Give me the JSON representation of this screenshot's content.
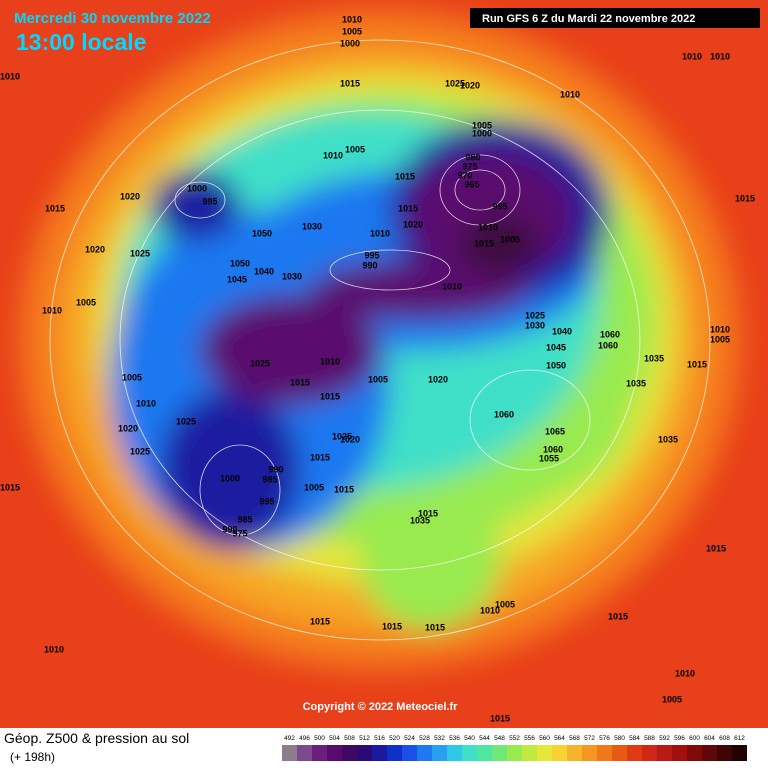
{
  "header": {
    "date": "Mercredi 30 novembre 2022",
    "time": "13:00 locale",
    "run": "Run GFS 6 Z du Mardi 22 novembre 2022"
  },
  "copyright": "Copyright © 2022 Meteociel.fr",
  "legend": {
    "title": "Géop. Z500 & pression au sol",
    "lead": "(+ 198h)",
    "scale": [
      492,
      496,
      500,
      504,
      508,
      512,
      516,
      520,
      524,
      528,
      532,
      536,
      540,
      544,
      548,
      552,
      556,
      560,
      564,
      568,
      572,
      576,
      580,
      584,
      588,
      592,
      596,
      600,
      604,
      608,
      612
    ],
    "colors": [
      "#8c7d8c",
      "#7a4a8a",
      "#6a1f7a",
      "#5a0a6e",
      "#3c0a60",
      "#2a0a78",
      "#1a1aa0",
      "#1030c8",
      "#1a50e6",
      "#1e78f0",
      "#28a0f0",
      "#30c8e8",
      "#40e0c8",
      "#50e6a0",
      "#70e878",
      "#98ea50",
      "#c0ea40",
      "#e6e63c",
      "#f6d232",
      "#f6b428",
      "#f69620",
      "#f07818",
      "#e85a14",
      "#e03c14",
      "#d02814",
      "#b81a14",
      "#a01010",
      "#800a0a",
      "#600808",
      "#400404",
      "#200202"
    ]
  },
  "isobar_labels": [
    "1010",
    "1010",
    "1005",
    "1000",
    "1015",
    "1025",
    "1020",
    "1010",
    "1010",
    "1005",
    "1000",
    "1005",
    "1010",
    "1015",
    "980",
    "975",
    "970",
    "965",
    "995",
    "1005",
    "1010",
    "1015",
    "1000",
    "995",
    "1020",
    "1015",
    "1020",
    "1025",
    "1050",
    "1030",
    "1020",
    "1015",
    "1010",
    "995",
    "990",
    "1010",
    "1050",
    "1045",
    "1040",
    "1030",
    "1005",
    "1010",
    "1025",
    "1015",
    "1010",
    "1005",
    "1020",
    "1015",
    "1025",
    "1030",
    "1045",
    "1050",
    "1040",
    "1060",
    "1060",
    "1035",
    "1035",
    "1015",
    "1010",
    "1005",
    "1010",
    "1025",
    "1020",
    "1025",
    "1060",
    "1065",
    "1060",
    "1055",
    "1035",
    "1000",
    "990",
    "985",
    "995",
    "985",
    "990",
    "975",
    "1025",
    "1020",
    "1015",
    "1005",
    "1015",
    "1015",
    "1015",
    "1035",
    "1015",
    "1015",
    "1015",
    "1015",
    "1005",
    "1010",
    "1015",
    "1010",
    "1010",
    "1005",
    "1015",
    "1010",
    "1005",
    "1015"
  ]
}
